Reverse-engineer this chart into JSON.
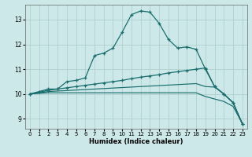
{
  "xlabel": "Humidex (Indice chaleur)",
  "bg_color": "#cce8e8",
  "grid_color": "#aacccc",
  "line_color": "#1a6e6e",
  "xlim": [
    -0.5,
    23.5
  ],
  "ylim": [
    8.6,
    13.6
  ],
  "yticks": [
    9,
    10,
    11,
    12,
    13
  ],
  "xticks": [
    0,
    1,
    2,
    3,
    4,
    5,
    6,
    7,
    8,
    9,
    10,
    11,
    12,
    13,
    14,
    15,
    16,
    17,
    18,
    19,
    20,
    21,
    22,
    23
  ],
  "line1_x": [
    0,
    1,
    2,
    3,
    4,
    5,
    6,
    7,
    8,
    9,
    10,
    11,
    12,
    13,
    14,
    15,
    16,
    17,
    18,
    19,
    20,
    21,
    22,
    23
  ],
  "line1_y": [
    10.0,
    10.1,
    10.2,
    10.2,
    10.5,
    10.55,
    10.65,
    11.55,
    11.65,
    11.85,
    12.5,
    13.2,
    13.35,
    13.3,
    12.85,
    12.2,
    11.85,
    11.9,
    11.8,
    11.0,
    10.3,
    10.0,
    9.65,
    8.8
  ],
  "line2_x": [
    0,
    2,
    3,
    4,
    5,
    6,
    7,
    8,
    9,
    10,
    11,
    12,
    13,
    14,
    15,
    16,
    17,
    18,
    19,
    20,
    21,
    22,
    23
  ],
  "line2_y": [
    10.0,
    10.15,
    10.2,
    10.25,
    10.3,
    10.35,
    10.4,
    10.45,
    10.5,
    10.55,
    10.62,
    10.68,
    10.73,
    10.78,
    10.85,
    10.9,
    10.95,
    11.0,
    11.05,
    10.3,
    10.0,
    9.65,
    8.8
  ],
  "line3_x": [
    0,
    2,
    3,
    4,
    5,
    6,
    7,
    8,
    9,
    10,
    11,
    12,
    13,
    14,
    15,
    16,
    17,
    18,
    19,
    20,
    21,
    22,
    23
  ],
  "line3_y": [
    10.0,
    10.1,
    10.12,
    10.14,
    10.16,
    10.18,
    10.2,
    10.22,
    10.24,
    10.26,
    10.28,
    10.3,
    10.32,
    10.34,
    10.36,
    10.38,
    10.4,
    10.42,
    10.3,
    10.28,
    10.0,
    9.65,
    8.8
  ],
  "line4_x": [
    0,
    2,
    3,
    4,
    5,
    6,
    7,
    8,
    9,
    10,
    11,
    12,
    13,
    14,
    15,
    16,
    17,
    18,
    19,
    20,
    21,
    22,
    23
  ],
  "line4_y": [
    10.0,
    10.05,
    10.05,
    10.05,
    10.05,
    10.05,
    10.05,
    10.05,
    10.05,
    10.05,
    10.05,
    10.05,
    10.05,
    10.05,
    10.05,
    10.05,
    10.05,
    10.05,
    9.9,
    9.8,
    9.7,
    9.5,
    8.8
  ]
}
